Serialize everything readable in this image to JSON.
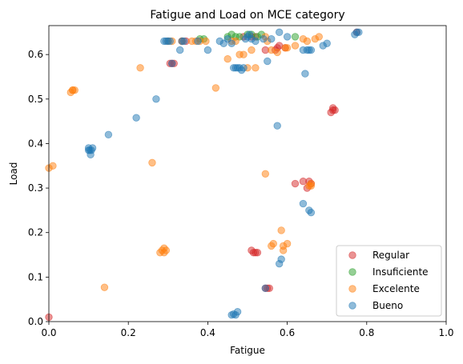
{
  "chart_data": {
    "type": "scatter",
    "title": "Fatigue and Load on MCE category",
    "xlabel": "Fatigue",
    "ylabel": "Load",
    "xlim": [
      0,
      1
    ],
    "ylim": [
      0,
      0.665
    ],
    "xticks": [
      0,
      0.2,
      0.4,
      0.6,
      0.8,
      1.0
    ],
    "xtick_labels": [
      "0.0",
      "0.2",
      "0.4",
      "0.6",
      "0.8",
      "1.0"
    ],
    "yticks": [
      0,
      0.1,
      0.2,
      0.3,
      0.4,
      0.5,
      0.6
    ],
    "ytick_labels": [
      "0.0",
      "0.1",
      "0.2",
      "0.3",
      "0.4",
      "0.5",
      "0.6"
    ],
    "grid": false,
    "legend_position": "lower-right",
    "series": [
      {
        "name": "Regular",
        "color": "#d62728",
        "points": [
          [
            0.0,
            0.01
          ],
          [
            0.305,
            0.58
          ],
          [
            0.31,
            0.58
          ],
          [
            0.315,
            0.58
          ],
          [
            0.335,
            0.63
          ],
          [
            0.345,
            0.63
          ],
          [
            0.49,
            0.64
          ],
          [
            0.51,
            0.64
          ],
          [
            0.52,
            0.64
          ],
          [
            0.545,
            0.61
          ],
          [
            0.57,
            0.61
          ],
          [
            0.575,
            0.615
          ],
          [
            0.58,
            0.62
          ],
          [
            0.595,
            0.615
          ],
          [
            0.62,
            0.31
          ],
          [
            0.64,
            0.315
          ],
          [
            0.65,
            0.3
          ],
          [
            0.655,
            0.315
          ],
          [
            0.66,
            0.31
          ],
          [
            0.51,
            0.16
          ],
          [
            0.515,
            0.155
          ],
          [
            0.52,
            0.155
          ],
          [
            0.525,
            0.155
          ],
          [
            0.545,
            0.075
          ],
          [
            0.55,
            0.075
          ],
          [
            0.555,
            0.075
          ],
          [
            0.71,
            0.47
          ],
          [
            0.715,
            0.475
          ],
          [
            0.72,
            0.475
          ],
          [
            0.715,
            0.48
          ],
          [
            0.775,
            0.65
          ]
        ]
      },
      {
        "name": "Insuficiente",
        "color": "#2ca02c",
        "points": [
          [
            0.38,
            0.635
          ],
          [
            0.39,
            0.635
          ],
          [
            0.45,
            0.64
          ],
          [
            0.46,
            0.645
          ],
          [
            0.47,
            0.64
          ],
          [
            0.48,
            0.64
          ],
          [
            0.5,
            0.645
          ],
          [
            0.51,
            0.645
          ],
          [
            0.525,
            0.64
          ],
          [
            0.535,
            0.645
          ],
          [
            0.62,
            0.64
          ]
        ]
      },
      {
        "name": "Excelente",
        "color": "#ff7f0e",
        "points": [
          [
            0.0,
            0.345
          ],
          [
            0.01,
            0.35
          ],
          [
            0.055,
            0.515
          ],
          [
            0.06,
            0.52
          ],
          [
            0.065,
            0.52
          ],
          [
            0.06,
            0.52
          ],
          [
            0.14,
            0.077
          ],
          [
            0.23,
            0.57
          ],
          [
            0.26,
            0.357
          ],
          [
            0.28,
            0.155
          ],
          [
            0.285,
            0.16
          ],
          [
            0.29,
            0.155
          ],
          [
            0.295,
            0.16
          ],
          [
            0.29,
            0.165
          ],
          [
            0.3,
            0.63
          ],
          [
            0.31,
            0.63
          ],
          [
            0.335,
            0.63
          ],
          [
            0.36,
            0.63
          ],
          [
            0.37,
            0.63
          ],
          [
            0.38,
            0.63
          ],
          [
            0.395,
            0.63
          ],
          [
            0.42,
            0.525
          ],
          [
            0.45,
            0.59
          ],
          [
            0.46,
            0.63
          ],
          [
            0.47,
            0.63
          ],
          [
            0.48,
            0.6
          ],
          [
            0.49,
            0.6
          ],
          [
            0.5,
            0.57
          ],
          [
            0.51,
            0.61
          ],
          [
            0.52,
            0.57
          ],
          [
            0.545,
            0.64
          ],
          [
            0.545,
            0.332
          ],
          [
            0.55,
            0.63
          ],
          [
            0.56,
            0.61
          ],
          [
            0.56,
            0.17
          ],
          [
            0.565,
            0.175
          ],
          [
            0.575,
            0.605
          ],
          [
            0.585,
            0.205
          ],
          [
            0.59,
            0.16
          ],
          [
            0.59,
            0.17
          ],
          [
            0.595,
            0.615
          ],
          [
            0.6,
            0.615
          ],
          [
            0.6,
            0.175
          ],
          [
            0.62,
            0.62
          ],
          [
            0.64,
            0.635
          ],
          [
            0.65,
            0.63
          ],
          [
            0.655,
            0.305
          ],
          [
            0.66,
            0.31
          ],
          [
            0.66,
            0.305
          ],
          [
            0.67,
            0.635
          ],
          [
            0.68,
            0.64
          ]
        ]
      },
      {
        "name": "Bueno",
        "color": "#1f77b4",
        "points": [
          [
            0.1,
            0.39
          ],
          [
            0.103,
            0.385
          ],
          [
            0.105,
            0.375
          ],
          [
            0.107,
            0.385
          ],
          [
            0.11,
            0.39
          ],
          [
            0.1,
            0.385
          ],
          [
            0.15,
            0.42
          ],
          [
            0.22,
            0.458
          ],
          [
            0.27,
            0.5
          ],
          [
            0.29,
            0.63
          ],
          [
            0.295,
            0.63
          ],
          [
            0.3,
            0.63
          ],
          [
            0.305,
            0.63
          ],
          [
            0.31,
            0.58
          ],
          [
            0.33,
            0.61
          ],
          [
            0.335,
            0.63
          ],
          [
            0.34,
            0.63
          ],
          [
            0.375,
            0.63
          ],
          [
            0.4,
            0.61
          ],
          [
            0.43,
            0.63
          ],
          [
            0.44,
            0.625
          ],
          [
            0.45,
            0.635
          ],
          [
            0.46,
            0.625
          ],
          [
            0.465,
            0.57
          ],
          [
            0.47,
            0.57
          ],
          [
            0.475,
            0.57
          ],
          [
            0.48,
            0.57
          ],
          [
            0.485,
            0.565
          ],
          [
            0.49,
            0.57
          ],
          [
            0.495,
            0.635
          ],
          [
            0.5,
            0.64
          ],
          [
            0.505,
            0.645
          ],
          [
            0.51,
            0.635
          ],
          [
            0.52,
            0.63
          ],
          [
            0.54,
            0.635
          ],
          [
            0.55,
            0.585
          ],
          [
            0.56,
            0.635
          ],
          [
            0.575,
            0.44
          ],
          [
            0.58,
            0.65
          ],
          [
            0.58,
            0.13
          ],
          [
            0.585,
            0.14
          ],
          [
            0.6,
            0.64
          ],
          [
            0.64,
            0.61
          ],
          [
            0.64,
            0.265
          ],
          [
            0.645,
            0.557
          ],
          [
            0.65,
            0.61
          ],
          [
            0.655,
            0.61
          ],
          [
            0.66,
            0.61
          ],
          [
            0.655,
            0.25
          ],
          [
            0.66,
            0.245
          ],
          [
            0.69,
            0.62
          ],
          [
            0.7,
            0.625
          ],
          [
            0.545,
            0.075
          ],
          [
            0.46,
            0.015
          ],
          [
            0.465,
            0.017
          ],
          [
            0.47,
            0.015
          ],
          [
            0.475,
            0.022
          ],
          [
            0.77,
            0.645
          ],
          [
            0.775,
            0.65
          ],
          [
            0.78,
            0.65
          ]
        ]
      }
    ]
  }
}
